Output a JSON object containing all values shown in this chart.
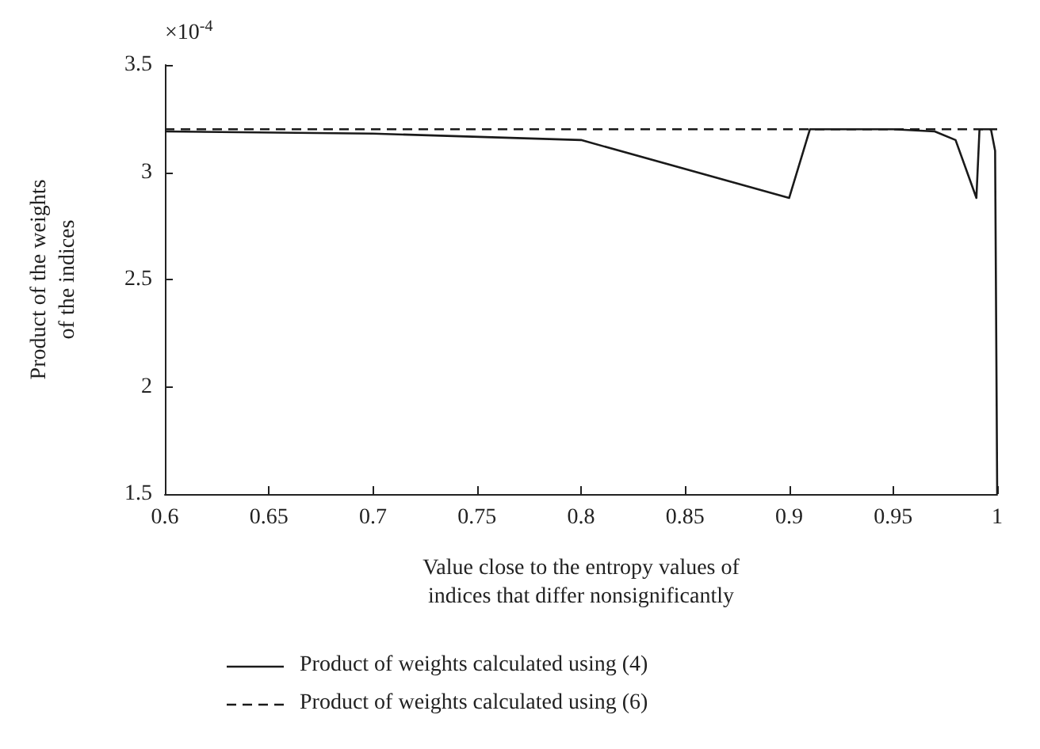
{
  "chart_data": {
    "type": "line",
    "xlabel": "Value close to the entropy values of\nindices that differ nonsignificantly",
    "ylabel": "Product of the weights\nof the indices",
    "annotations": [
      "×10$^{-4}$"
    ],
    "series": [
      {
        "name": "Product of weights calculated using (4)",
        "color": "#1a1a1a",
        "line_style": "solid",
        "x": [
          0.6,
          0.7,
          0.8,
          0.9,
          0.91,
          0.95,
          0.97,
          0.98,
          0.99,
          0.9915,
          0.997,
          0.999,
          1
        ],
        "values": [
          3.19,
          3.18,
          3.15,
          2.88,
          3.2,
          3.2,
          3.19,
          3.15,
          2.88,
          3.2,
          3.2,
          3.1,
          1.5
        ]
      },
      {
        "name": "Product of weights calculated using (6)",
        "color": "#1a1a1a",
        "line_style": "dashed",
        "x": [
          0.6,
          1
        ],
        "values": [
          3.2,
          3.2
        ]
      }
    ],
    "xlim": [
      0.6,
      1
    ],
    "xticks": [
      0.6,
      0.65,
      0.7,
      0.75,
      0.8,
      0.85,
      0.9,
      0.95,
      1
    ],
    "ylim": [
      1.5,
      3.5
    ],
    "yticks": [
      1.5,
      2,
      2.5,
      3,
      3.5
    ],
    "grid": false,
    "legend": "bottom",
    "marker": "none"
  }
}
